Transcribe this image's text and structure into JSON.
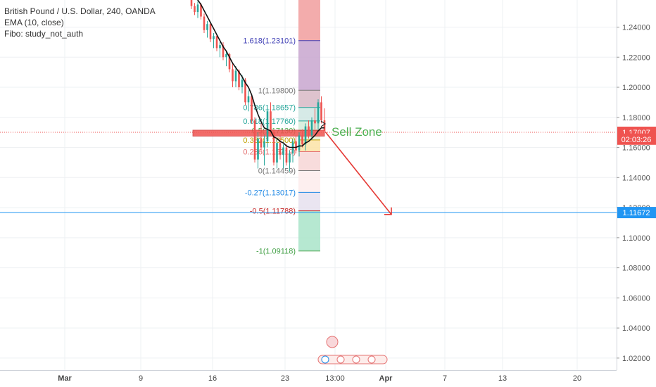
{
  "legend": {
    "symbol": "British Pound / U.S. Dollar, 240, OANDA",
    "ema": "EMA (10, close)",
    "fibo": "Fibo: study_not_auth"
  },
  "annotation": {
    "sell_zone": "Sell Zone"
  },
  "colors": {
    "up": "#26a69a",
    "down": "#ef5350",
    "ema": "#111111",
    "arrow": "#e53935",
    "hline": "#2196f3",
    "price_tag": "#ef5350",
    "zone": "#ef5350"
  },
  "chart_data": {
    "type": "candlestick",
    "y_axis": {
      "ticks": [
        "1.24000",
        "1.22000",
        "1.20000",
        "1.18000",
        "1.16000",
        "1.14000",
        "1.12000",
        "1.10000",
        "1.08000",
        "1.06000",
        "1.04000",
        "1.02000"
      ],
      "range": [
        1.012,
        1.258
      ]
    },
    "x_axis": {
      "ticks": [
        "Mar",
        "9",
        "16",
        "23",
        "13:00",
        "Apr",
        "7",
        "13",
        "20"
      ]
    },
    "price_tags": [
      {
        "label": "1.17007",
        "value": 1.17007,
        "color": "#ef5350"
      },
      {
        "label": "02:03:26",
        "value": 1.1655,
        "color": "#ef5350"
      },
      {
        "label": "1.11672",
        "value": 1.11672,
        "color": "#2196f3"
      }
    ],
    "current_price": 1.17007,
    "horizontal_line": 1.11672,
    "fibonacci": [
      {
        "label": "1.618(1.23101)",
        "value": 1.23101,
        "color": "#3f3fb5"
      },
      {
        "label": "1(1.19800)",
        "value": 1.198,
        "color": "#777777"
      },
      {
        "label": "0.786(1.18657)",
        "value": 1.18657,
        "color": "#26a69a"
      },
      {
        "label": "0.618(1.17760)",
        "value": 1.1776,
        "color": "#26a69a"
      },
      {
        "label": "0.5(1.17130)",
        "value": 1.1713,
        "color": "#4caf50"
      },
      {
        "label": "0.382(1.16500)",
        "value": 1.165,
        "color": "#c0a000"
      },
      {
        "label": "0.236(1.15719)",
        "value": 1.15719,
        "color": "#e57373"
      },
      {
        "label": "0(1.14459)",
        "value": 1.14459,
        "color": "#777777"
      },
      {
        "label": "-0.27(1.13017)",
        "value": 1.13017,
        "color": "#1e88e5"
      },
      {
        "label": "-0.5(1.11788)",
        "value": 1.11788,
        "color": "#c62828"
      },
      {
        "label": "-1(1.09118)",
        "value": 1.09118,
        "color": "#43a047"
      }
    ],
    "candles": [
      [
        1.259,
        1.261,
        1.252,
        1.254
      ],
      [
        1.254,
        1.256,
        1.248,
        1.25
      ],
      [
        1.25,
        1.257,
        1.246,
        1.255
      ],
      [
        1.255,
        1.256,
        1.245,
        1.247
      ],
      [
        1.247,
        1.249,
        1.236,
        1.238
      ],
      [
        1.238,
        1.244,
        1.233,
        1.242
      ],
      [
        1.242,
        1.243,
        1.23,
        1.232
      ],
      [
        1.232,
        1.236,
        1.226,
        1.234
      ],
      [
        1.234,
        1.235,
        1.224,
        1.226
      ],
      [
        1.226,
        1.23,
        1.22,
        1.228
      ],
      [
        1.228,
        1.23,
        1.218,
        1.22
      ],
      [
        1.22,
        1.224,
        1.214,
        1.222
      ],
      [
        1.222,
        1.223,
        1.21,
        1.212
      ],
      [
        1.212,
        1.216,
        1.2,
        1.204
      ],
      [
        1.204,
        1.214,
        1.2,
        1.211
      ],
      [
        1.211,
        1.212,
        1.198,
        1.2
      ],
      [
        1.2,
        1.208,
        1.196,
        1.205
      ],
      [
        1.205,
        1.206,
        1.188,
        1.19
      ],
      [
        1.19,
        1.198,
        1.184,
        1.194
      ],
      [
        1.194,
        1.195,
        1.176,
        1.178
      ],
      [
        1.178,
        1.18,
        1.15,
        1.152
      ],
      [
        1.152,
        1.17,
        1.146,
        1.166
      ],
      [
        1.166,
        1.176,
        1.158,
        1.16
      ],
      [
        1.16,
        1.168,
        1.148,
        1.164
      ],
      [
        1.164,
        1.186,
        1.16,
        1.184
      ],
      [
        1.184,
        1.19,
        1.168,
        1.17
      ],
      [
        1.17,
        1.172,
        1.148,
        1.15
      ],
      [
        1.15,
        1.166,
        1.146,
        1.163
      ],
      [
        1.163,
        1.168,
        1.152,
        1.155
      ],
      [
        1.155,
        1.162,
        1.146,
        1.16
      ],
      [
        1.16,
        1.162,
        1.148,
        1.15
      ],
      [
        1.15,
        1.158,
        1.144,
        1.156
      ],
      [
        1.156,
        1.166,
        1.15,
        1.164
      ],
      [
        1.164,
        1.168,
        1.156,
        1.158
      ],
      [
        1.158,
        1.17,
        1.154,
        1.168
      ],
      [
        1.168,
        1.172,
        1.16,
        1.162
      ],
      [
        1.162,
        1.176,
        1.158,
        1.174
      ],
      [
        1.174,
        1.178,
        1.166,
        1.168
      ],
      [
        1.168,
        1.18,
        1.165,
        1.178
      ],
      [
        1.178,
        1.186,
        1.172,
        1.176
      ],
      [
        1.176,
        1.192,
        1.172,
        1.19
      ],
      [
        1.19,
        1.194,
        1.176,
        1.178
      ],
      [
        1.178,
        1.186,
        1.17,
        1.171
      ]
    ],
    "ema": [
      1.262,
      1.26,
      1.258,
      1.255,
      1.251,
      1.247,
      1.243,
      1.239,
      1.235,
      1.231,
      1.227,
      1.224,
      1.22,
      1.216,
      1.213,
      1.21,
      1.207,
      1.203,
      1.2,
      1.195,
      1.188,
      1.182,
      1.177,
      1.173,
      1.172,
      1.171,
      1.167,
      1.166,
      1.164,
      1.163,
      1.161,
      1.16,
      1.16,
      1.16,
      1.161,
      1.161,
      1.163,
      1.164,
      1.166,
      1.168,
      1.171,
      1.173,
      1.173
    ],
    "zone": {
      "top": 1.1715,
      "bottom": 1.1675
    },
    "arrow": {
      "from_value": 1.1705,
      "to_value": 1.1178
    }
  }
}
